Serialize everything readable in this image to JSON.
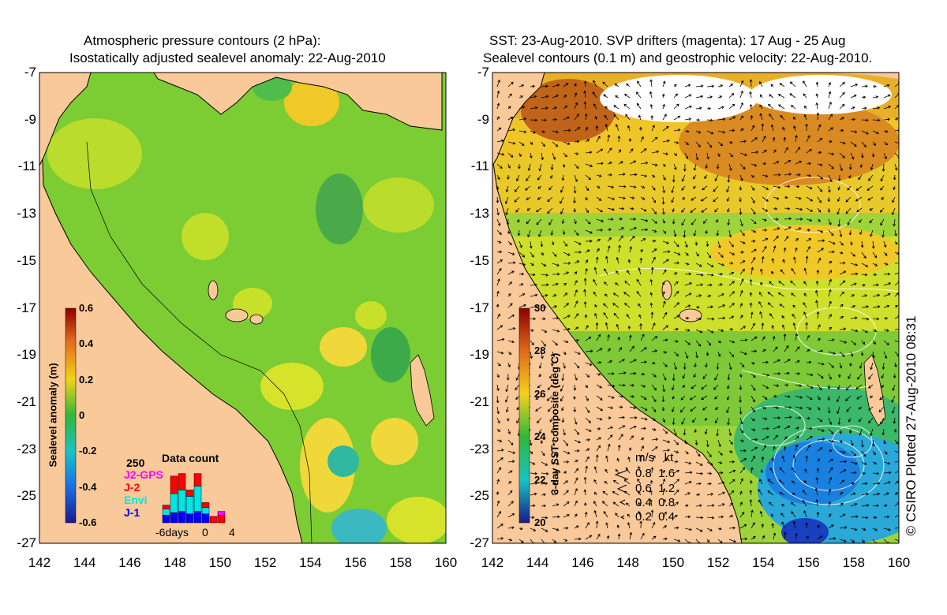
{
  "left_panel": {
    "title_line1": "Atmospheric pressure contours (2 hPa):",
    "title_line2": "Isostatically adjusted sealevel anomaly: 22-Aug-2010",
    "colorbar_label": "Sealevel anomaly (m)",
    "colorbar_ticks": [
      "0.6",
      "0.4",
      "0.2",
      "0",
      "-0.2",
      "-0.4",
      "-0.6"
    ],
    "data_count": {
      "title": "Data count",
      "ymax_label": "250",
      "series": [
        {
          "name": "J2-GPS",
          "color": "#ff00ff"
        },
        {
          "name": "J-2",
          "color": "#ff0000"
        },
        {
          "name": "Envi",
          "color": "#00e5e5"
        },
        {
          "name": "J-1",
          "color": "#0000ff"
        }
      ],
      "x_label_left": "-6days",
      "x_label_mid": "0",
      "x_label_right": "4",
      "bars": [
        {
          "j1": 0.12,
          "envi": 0.1,
          "j2": 0.06,
          "gps": 0.0
        },
        {
          "j1": 0.16,
          "envi": 0.3,
          "j2": 0.28,
          "gps": 0.0
        },
        {
          "j1": 0.18,
          "envi": 0.34,
          "j2": 0.26,
          "gps": 0.0
        },
        {
          "j1": 0.14,
          "envi": 0.28,
          "j2": 0.1,
          "gps": 0.0
        },
        {
          "j1": 0.18,
          "envi": 0.4,
          "j2": 0.2,
          "gps": 0.0
        },
        {
          "j1": 0.14,
          "envi": 0.1,
          "j2": 0.08,
          "gps": 0.0
        },
        {
          "j1": 0.0,
          "envi": 0.0,
          "j2": 0.1,
          "gps": 0.0
        },
        {
          "j1": 0.0,
          "envi": 0.0,
          "j2": 0.12,
          "gps": 0.06
        }
      ]
    }
  },
  "right_panel": {
    "title_line1": "SST: 23-Aug-2010. SVP drifters (magenta): 17 Aug - 25 Aug",
    "title_line2": "Sealevel contours (0.1 m) and geostrophic velocity: 22-Aug-2010.",
    "colorbar_label": "3-day SST composite (deg C)",
    "colorbar_ticks": [
      "30",
      "28",
      "26",
      "24",
      "22",
      "20"
    ],
    "speed_legend": {
      "header": "m/s   kt",
      "rows": [
        "0.8  1.6",
        "0.6  1.2",
        "0.4  0.8",
        "0.2  0.4"
      ]
    },
    "credit": "© CSIRO Plotted 27-Aug-2010 08:31"
  },
  "y_ticks": [
    "-7",
    "-9",
    "-11",
    "-13",
    "-15",
    "-17",
    "-19",
    "-21",
    "-23",
    "-25",
    "-27"
  ],
  "x_ticks": [
    "142",
    "144",
    "146",
    "148",
    "150",
    "152",
    "154",
    "156",
    "158",
    "160"
  ],
  "colors": {
    "land": "#f9c99a",
    "sla_base": "#7ccc33",
    "sst_base": "#9fd33a"
  }
}
